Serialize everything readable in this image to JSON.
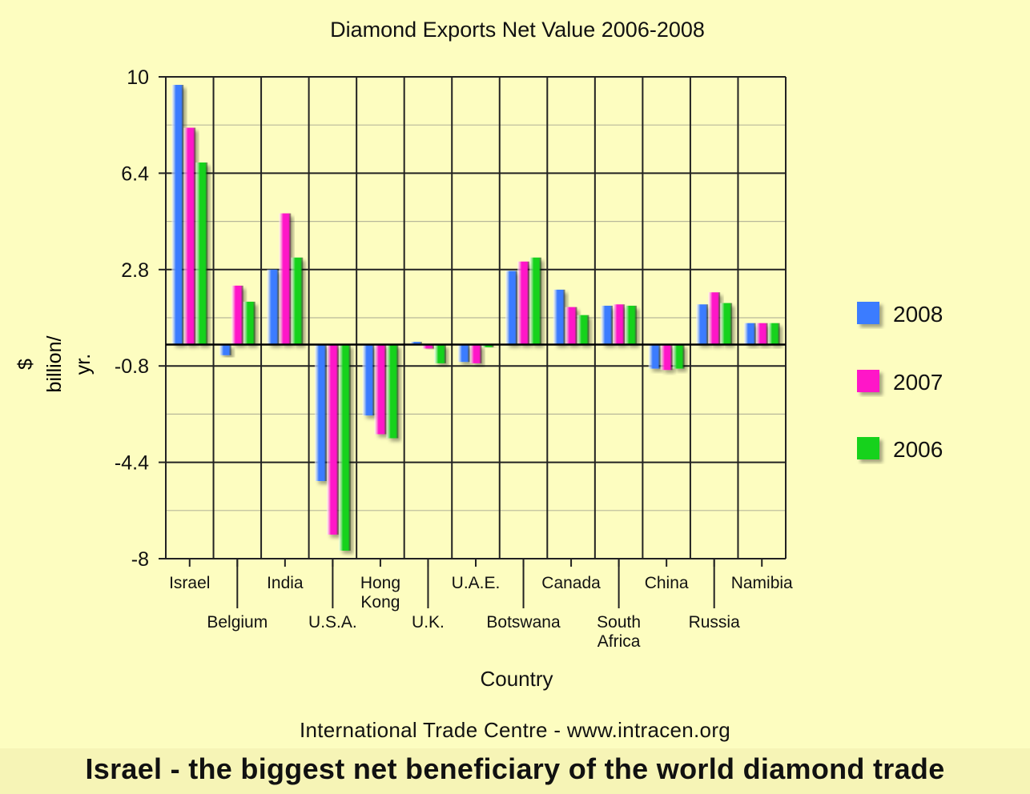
{
  "chart_data": {
    "type": "bar",
    "title": "Diamond Exports Net Value 2006-2008",
    "xlabel": "Country",
    "ylabel": "$ billion/ yr.",
    "ylim": [
      -8,
      10
    ],
    "yticks": [
      "10",
      "6.4",
      "2.8",
      "-0.8",
      "-4.4",
      "-8"
    ],
    "ytick_values": [
      10,
      6.4,
      2.8,
      -0.8,
      -4.4,
      -8
    ],
    "grid": true,
    "legend_position": "right",
    "categories": [
      "Israel",
      "Belgium",
      "India",
      "U.S.A.",
      "Hong Kong",
      "U.K.",
      "U.A.E.",
      "Botswana",
      "Canada",
      "South Africa",
      "China",
      "Russia",
      "Namibia"
    ],
    "series": [
      {
        "name": "2008",
        "color": "#3a7bff",
        "values": [
          9.7,
          -0.4,
          2.8,
          -5.1,
          -2.65,
          0.1,
          -0.65,
          2.75,
          2.05,
          1.45,
          -0.9,
          1.5,
          0.8
        ]
      },
      {
        "name": "2007",
        "color": "#ff14c8",
        "values": [
          8.1,
          2.2,
          4.9,
          -7.1,
          -3.35,
          -0.15,
          -0.7,
          3.1,
          1.4,
          1.5,
          -0.95,
          1.95,
          0.8
        ]
      },
      {
        "name": "2006",
        "color": "#14d21e",
        "values": [
          6.8,
          1.6,
          3.25,
          -7.7,
          -3.5,
          -0.7,
          -0.1,
          3.25,
          1.1,
          1.45,
          -0.9,
          1.55,
          0.8
        ]
      }
    ]
  },
  "footer": {
    "source": "International Trade Centre -  www.intracen.org",
    "headline": "Israel - the biggest net beneficiary of the world diamond trade"
  }
}
